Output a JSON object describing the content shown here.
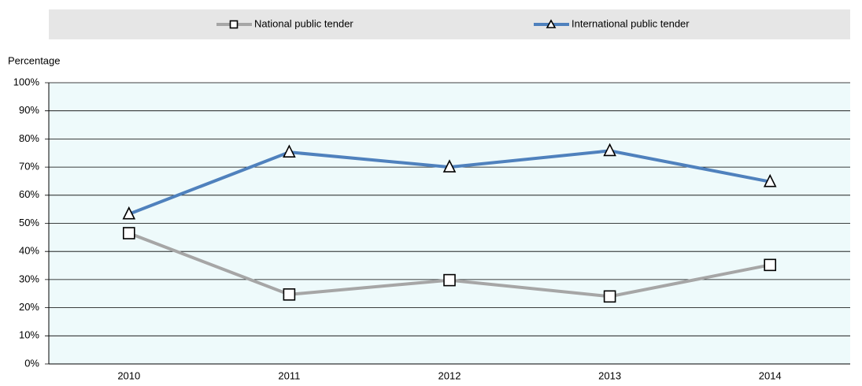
{
  "chart_data": {
    "type": "line",
    "y_axis_label": "Percentage",
    "categories": [
      "2010",
      "2011",
      "2012",
      "2013",
      "2014"
    ],
    "series": [
      {
        "name": "National public tender",
        "color": "#a6a6a6",
        "marker": "square",
        "values": [
          46.5,
          24.7,
          29.8,
          24,
          35.2
        ]
      },
      {
        "name": "International public tender",
        "color": "#4f81bd",
        "marker": "triangle",
        "values": [
          53.3,
          75.3,
          70,
          75.8,
          64.8
        ]
      }
    ],
    "ylim": [
      0,
      100
    ],
    "yticks": [
      {
        "value": 0,
        "label": "0%"
      },
      {
        "value": 10,
        "label": "10%"
      },
      {
        "value": 20,
        "label": "20%"
      },
      {
        "value": 30,
        "label": "30%"
      },
      {
        "value": 40,
        "label": "40%"
      },
      {
        "value": 50,
        "label": "50%"
      },
      {
        "value": 60,
        "label": "60%"
      },
      {
        "value": 70,
        "label": "70%"
      },
      {
        "value": 80,
        "label": "80%"
      },
      {
        "value": 90,
        "label": "90%"
      },
      {
        "value": 100,
        "label": "100%"
      }
    ],
    "grid": true,
    "legend": "top",
    "plot_background": "#eefafb"
  }
}
